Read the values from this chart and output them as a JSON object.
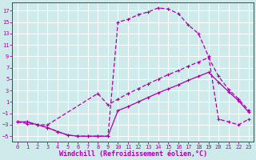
{
  "background_color": "#ceeaea",
  "grid_color": "#ffffff",
  "line_color": "#aa00aa",
  "xlabel": "Windchill (Refroidissement éolien,°C)",
  "xlabel_fontsize": 6.0,
  "yticks": [
    -5,
    -3,
    -1,
    1,
    3,
    5,
    7,
    9,
    11,
    13,
    15,
    17
  ],
  "xticks": [
    0,
    1,
    2,
    3,
    4,
    5,
    6,
    7,
    8,
    9,
    10,
    11,
    12,
    13,
    14,
    15,
    16,
    17,
    18,
    19,
    20,
    21,
    22,
    23
  ],
  "xlim": [
    -0.5,
    23.5
  ],
  "ylim": [
    -6.0,
    18.5
  ],
  "curve1_x": [
    0,
    1,
    2,
    3,
    4,
    5,
    6,
    7,
    8,
    9,
    10,
    11,
    12,
    13,
    14,
    15,
    16,
    17,
    18,
    19,
    20,
    21,
    22,
    23
  ],
  "curve1_y": [
    -2.5,
    -2.8,
    -3.0,
    -3.5,
    -4.2,
    -4.8,
    -5.0,
    -5.0,
    -5.0,
    -5.0,
    15.0,
    15.5,
    16.3,
    16.8,
    17.5,
    17.3,
    16.5,
    14.5,
    13.0,
    9.0,
    -2.0,
    -2.5,
    -3.0,
    -2.0
  ],
  "curve2_x": [
    0,
    1,
    2,
    3,
    8,
    9,
    10,
    11,
    12,
    13,
    14,
    15,
    16,
    17,
    18,
    19,
    20,
    21,
    22,
    23
  ],
  "curve2_y": [
    -2.5,
    -2.5,
    -3.0,
    -3.0,
    2.5,
    0.5,
    1.5,
    2.5,
    3.3,
    4.2,
    5.0,
    5.8,
    6.5,
    7.3,
    8.0,
    8.8,
    5.5,
    3.2,
    1.5,
    -0.5
  ],
  "curve3_x": [
    0,
    1,
    2,
    3,
    4,
    5,
    6,
    7,
    8,
    9,
    10,
    11,
    12,
    13,
    14,
    15,
    16,
    17,
    18,
    19,
    20,
    21,
    22,
    23
  ],
  "curve3_y": [
    -2.5,
    -2.5,
    -3.0,
    -3.5,
    -4.2,
    -4.8,
    -5.0,
    -5.0,
    -5.0,
    -5.0,
    -0.5,
    0.2,
    1.0,
    1.8,
    2.6,
    3.3,
    4.0,
    4.8,
    5.5,
    6.2,
    4.5,
    2.8,
    1.2,
    -0.8
  ]
}
